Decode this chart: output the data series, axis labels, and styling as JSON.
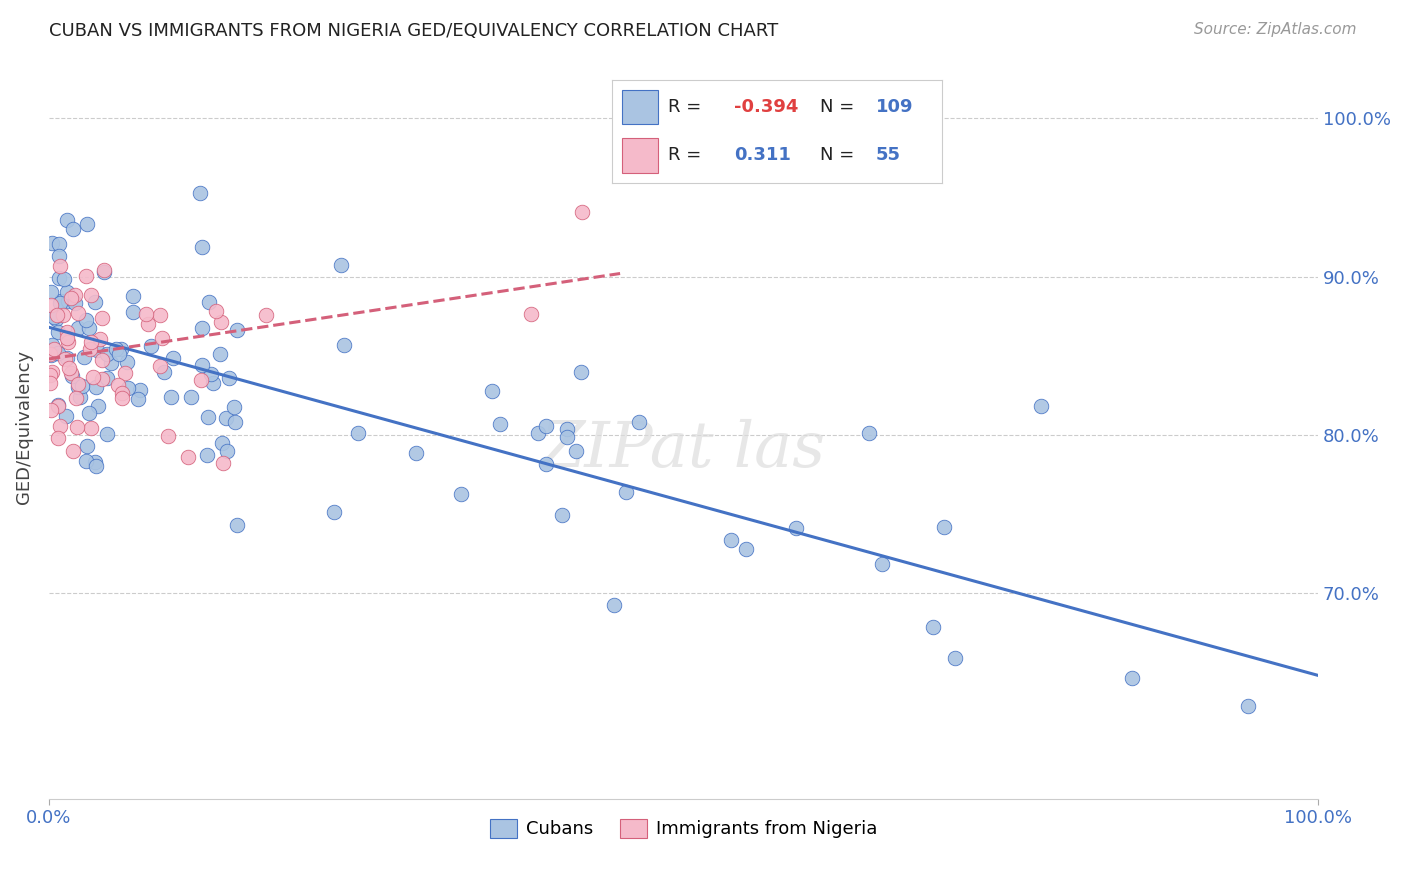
{
  "title": "CUBAN VS IMMIGRANTS FROM NIGERIA GED/EQUIVALENCY CORRELATION CHART",
  "source": "Source: ZipAtlas.com",
  "ylabel": "GED/Equivalency",
  "legend_r_cuban": "-0.394",
  "legend_n_cuban": "109",
  "legend_r_nigeria": "0.311",
  "legend_n_nigeria": "55",
  "cuban_color": "#aac4e2",
  "nigeria_color": "#f5baca",
  "cuban_line_color": "#4472c4",
  "nigeria_line_color": "#d4607a",
  "background_color": "#ffffff",
  "ytick_values": [
    0.7,
    0.8,
    0.9,
    1.0
  ],
  "ytick_labels": [
    "70.0%",
    "80.0%",
    "90.0%",
    "100.0%"
  ],
  "xlim": [
    0.0,
    1.0
  ],
  "ylim": [
    0.57,
    1.04
  ]
}
